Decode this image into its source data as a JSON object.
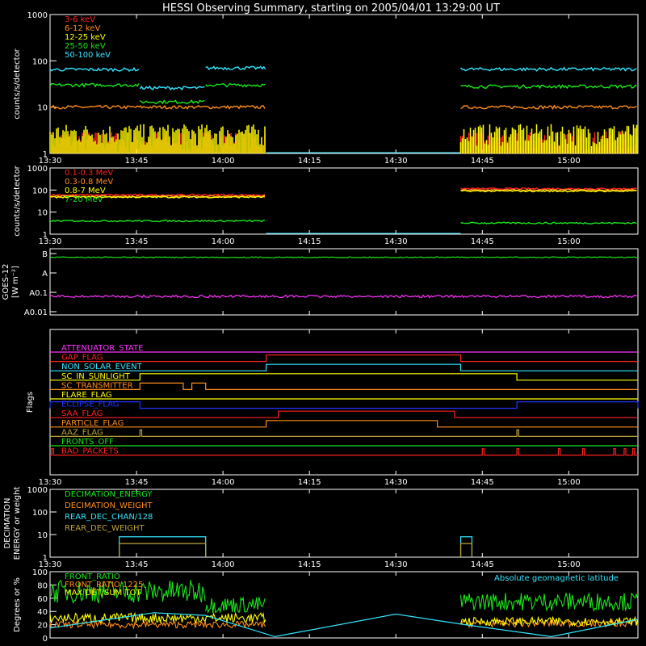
{
  "title": "HESSI Observing Summary, starting on 2005/04/01 13:29:00 UT",
  "time_ticks": [
    "13:30",
    "13:45",
    "14:00",
    "14:15",
    "14:30",
    "14:45",
    "15:00"
  ],
  "colors": {
    "white": "#ffffff",
    "red": "#ff2020",
    "orange": "#ff8c1a",
    "yellow": "#ffff00",
    "green": "#19e619",
    "cyan": "#33e6ff",
    "magenta": "#ff33ff",
    "blue": "#2233ff",
    "olive": "#bba43a"
  },
  "chart_data": [
    {
      "type": "line",
      "ylabel": "counts/s/detector",
      "yscale": "log",
      "ylim": [
        1,
        1000
      ],
      "y_ticks": [
        "1",
        "10",
        "100",
        "1000"
      ],
      "legend": [
        {
          "name": "3-6 keV",
          "color": "#ff2020"
        },
        {
          "name": "6-12 keV",
          "color": "#ff8c1a"
        },
        {
          "name": "12-25 keV",
          "color": "#ffff00"
        },
        {
          "name": "25-50 keV",
          "color": "#19e619"
        },
        {
          "name": "50-100 keV",
          "color": "#33e6ff"
        }
      ],
      "series": [
        {
          "name": "3-6 keV",
          "color": "#ff2020",
          "segments": [
            {
              "t": [
                13.5,
                14.125
              ],
              "v": 1.8
            },
            {
              "t": [
                14.6875,
                15.2
              ],
              "v": 1.8
            }
          ]
        },
        {
          "name": "6-12 keV",
          "color": "#ff8c1a",
          "segments": [
            {
              "t": [
                13.5,
                14.125
              ],
              "v": 10
            },
            {
              "t": [
                14.6875,
                15.2
              ],
              "v": 10
            }
          ]
        },
        {
          "name": "12-25 keV",
          "color": "#ffff00",
          "segments": [
            {
              "t": [
                13.5,
                14.125
              ],
              "v": 2.6
            },
            {
              "t": [
                14.6875,
                15.2
              ],
              "v": 2.6
            }
          ]
        },
        {
          "name": "25-50 keV",
          "color": "#19e619",
          "segments": [
            {
              "t": [
                13.5,
                13.76
              ],
              "v": 30
            },
            {
              "t": [
                13.76,
                13.95
              ],
              "v": 13
            },
            {
              "t": [
                13.95,
                14.125
              ],
              "v": 30
            },
            {
              "t": [
                14.6875,
                15.2
              ],
              "v": 28
            }
          ]
        },
        {
          "name": "50-100 keV",
          "color": "#33e6ff",
          "segments": [
            {
              "t": [
                13.5,
                13.76
              ],
              "v": 65
            },
            {
              "t": [
                13.76,
                13.95
              ],
              "v": 26
            },
            {
              "t": [
                13.95,
                14.125
              ],
              "v": 70
            },
            {
              "t": [
                14.6875,
                15.2
              ],
              "v": 66
            }
          ]
        }
      ]
    },
    {
      "type": "line",
      "ylabel": "counts/s/detector",
      "yscale": "log",
      "ylim": [
        1,
        1000
      ],
      "y_ticks": [
        "1",
        "10",
        "100",
        "1000"
      ],
      "legend": [
        {
          "name": "0.1-0.3 MeV",
          "color": "#ff2020"
        },
        {
          "name": "0.3-0.8 MeV",
          "color": "#ff8c1a"
        },
        {
          "name": "0.8-7 MeV",
          "color": "#ffff00"
        },
        {
          "name": "7-20 MeV",
          "color": "#19e619"
        }
      ],
      "series": [
        {
          "name": "0.1-0.3 MeV",
          "color": "#ff2020",
          "segments": [
            {
              "t": [
                13.5,
                14.125
              ],
              "v": 60
            },
            {
              "t": [
                14.6875,
                15.2
              ],
              "v": 115
            }
          ]
        },
        {
          "name": "0.3-0.8 MeV",
          "color": "#ff8c1a",
          "segments": [
            {
              "t": [
                13.5,
                14.125
              ],
              "v": 52
            },
            {
              "t": [
                14.6875,
                15.2
              ],
              "v": 100
            }
          ]
        },
        {
          "name": "0.8-7 MeV",
          "color": "#ffff00",
          "segments": [
            {
              "t": [
                13.5,
                14.125
              ],
              "v": 48
            },
            {
              "t": [
                14.6875,
                15.2
              ],
              "v": 90
            }
          ]
        },
        {
          "name": "7-20 MeV",
          "color": "#19e619",
          "segments": [
            {
              "t": [
                13.5,
                14.125
              ],
              "v": 4
            },
            {
              "t": [
                14.6875,
                15.2
              ],
              "v": 3.2
            }
          ]
        }
      ]
    },
    {
      "type": "line",
      "ylabel": "GOES-12",
      "ylabel2": "[W m⁻²]",
      "y_ticks": [
        "B",
        "A",
        "A0.1",
        "A0.01"
      ],
      "series": [
        {
          "name": "",
          "color": "#19e619",
          "level": 0.13
        },
        {
          "name": "",
          "color": "#ff33ff",
          "level": 0.72
        }
      ]
    },
    {
      "type": "line",
      "ylabel": "Flags",
      "flags": [
        {
          "name": "ATTENUATOR_STATE",
          "color": "#ff33ff",
          "on": []
        },
        {
          "name": "GAP_FLAG",
          "color": "#ff2020",
          "on": [
            [
              14.125,
              14.6875
            ]
          ]
        },
        {
          "name": "NON_SOLAR_EVENT",
          "color": "#33e6ff",
          "on": [
            [
              14.125,
              14.6875
            ]
          ]
        },
        {
          "name": "SC_IN_SUNLIGHT",
          "color": "#ffff00",
          "on": [
            [
              13.76,
              14.85
            ]
          ]
        },
        {
          "name": "SC_TRANSMITTER",
          "color": "#ff8c1a",
          "on": [
            [
              13.76,
              13.885
            ],
            [
              13.91,
              13.95
            ]
          ]
        },
        {
          "name": "FLARE_FLAG",
          "color": "#ffff00",
          "on": []
        },
        {
          "name": "ECLIPSE_FLAG",
          "color": "#2233ff",
          "on": [
            [
              13.5,
              13.76
            ],
            [
              14.85,
              15.2
            ]
          ]
        },
        {
          "name": "SAA_FLAG",
          "color": "#ff2020",
          "on": [
            [
              14.16,
              14.67
            ]
          ]
        },
        {
          "name": "PARTICLE_FLAG",
          "color": "#ff8c1a",
          "on": [
            [
              14.125,
              14.62
            ]
          ]
        },
        {
          "name": "AAZ_FLAG",
          "color": "#bba43a",
          "on": [
            [
              13.76,
              13.765
            ],
            [
              14.85,
              14.855
            ]
          ]
        },
        {
          "name": "FRONTS_OFF",
          "color": "#19e619",
          "on": []
        },
        {
          "name": "BAD_PACKETS",
          "color": "#ff2020",
          "on": [
            [
              13.505,
              13.51
            ],
            [
              14.75,
              14.755
            ],
            [
              14.85,
              14.855
            ],
            [
              14.97,
              14.975
            ],
            [
              15.04,
              15.045
            ],
            [
              15.13,
              15.135
            ],
            [
              15.16,
              15.165
            ],
            [
              15.185,
              15.19
            ]
          ]
        }
      ]
    },
    {
      "type": "line",
      "ylabel": "DECIMATION",
      "ylabel2": "ENERGY or weight",
      "yscale": "log",
      "ylim": [
        1,
        1000
      ],
      "y_ticks": [
        "1",
        "10",
        "100",
        "1000"
      ],
      "legend": [
        {
          "name": "DECIMATION_ENERGY",
          "color": "#19e619"
        },
        {
          "name": "DECIMATION_WEIGHT",
          "color": "#ff8c1a"
        },
        {
          "name": "REAR_DEC_CHAN/128",
          "color": "#33e6ff"
        },
        {
          "name": "REAR_DEC_WEIGHT",
          "color": "#bba43a"
        }
      ],
      "series": [
        {
          "name": "REAR_DEC_CHAN/128",
          "color": "#33e6ff",
          "boxes": [
            {
              "t": [
                13.7,
                13.95
              ],
              "v": 8
            },
            {
              "t": [
                14.6875,
                14.72
              ],
              "v": 8
            }
          ]
        },
        {
          "name": "REAR_DEC_WEIGHT",
          "color": "#bba43a",
          "boxes": [
            {
              "t": [
                13.7,
                13.95
              ],
              "v": 4
            },
            {
              "t": [
                14.6875,
                14.72
              ],
              "v": 4
            }
          ]
        }
      ]
    },
    {
      "type": "line",
      "ylabel": "Degrees or %",
      "ylim": [
        0,
        100
      ],
      "y_ticks": [
        "0",
        "20",
        "40",
        "60",
        "80",
        "100"
      ],
      "legend": [
        {
          "name": "FRONT_RATIO",
          "color": "#19e619"
        },
        {
          "name": "FRONT_RATIO 1225",
          "color": "#ff8c1a"
        },
        {
          "name": "MAX DET/SUM TOT",
          "color": "#ffff00"
        }
      ],
      "annotation": "Absolute geomagnetic latitude",
      "series": [
        {
          "name": "FRONT_RATIO",
          "color": "#19e619",
          "segments": [
            {
              "t": [
                13.5,
                13.95
              ],
              "v": 70
            },
            {
              "t": [
                13.95,
                14.125
              ],
              "v": 50
            },
            {
              "t": [
                14.6875,
                15.2
              ],
              "v": 55
            }
          ]
        },
        {
          "name": "FRONT_RATIO 1225",
          "color": "#ff8c1a",
          "segments": [
            {
              "t": [
                13.5,
                14.125
              ],
              "v": 20
            },
            {
              "t": [
                14.6875,
                15.2
              ],
              "v": 22
            }
          ]
        },
        {
          "name": "MAX DET/SUM TOT",
          "color": "#ffff00",
          "segments": [
            {
              "t": [
                13.5,
                14.125
              ],
              "v": 30
            },
            {
              "t": [
                14.6875,
                15.2
              ],
              "v": 25
            }
          ]
        },
        {
          "name": "Absolute geomagnetic latitude",
          "color": "#33e6ff",
          "curve": [
            [
              13.5,
              15
            ],
            [
              13.8,
              38
            ],
            [
              13.95,
              34
            ],
            [
              14.15,
              2
            ],
            [
              14.5,
              36
            ],
            [
              14.7,
              20
            ],
            [
              14.95,
              2
            ],
            [
              15.2,
              28
            ]
          ]
        }
      ]
    }
  ]
}
